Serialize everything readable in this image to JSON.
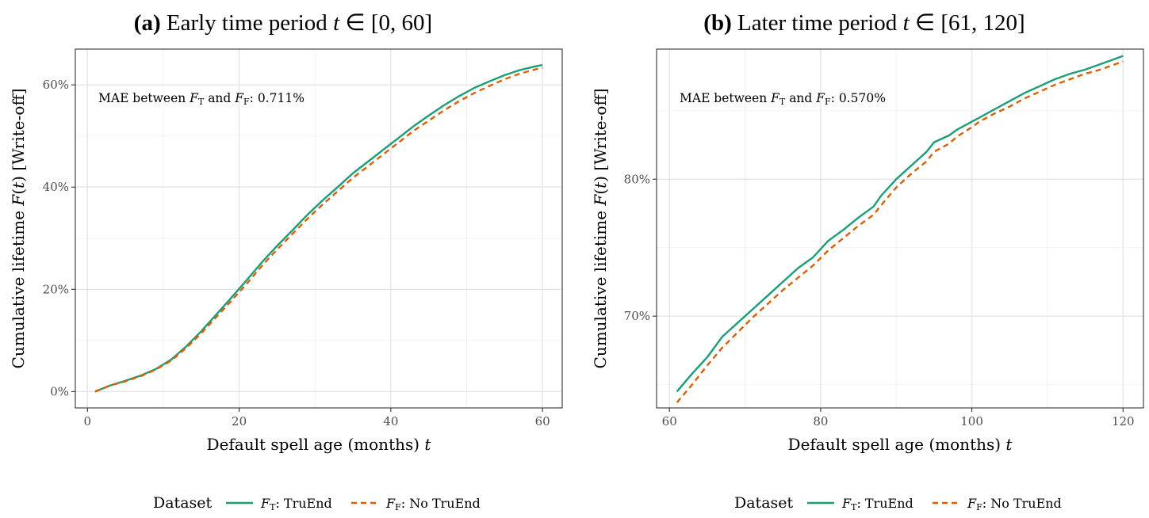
{
  "chart_data": [
    {
      "type": "line",
      "panel": "a",
      "title_label": "(a)",
      "title": "Early time period",
      "title_math_var": "t",
      "title_math_rest": " ∈ [0, 60]",
      "xlabel": "Default spell age (months)",
      "xlabel_var": "t",
      "ylabel": "Cumulative lifetime F(t) [Write-off]",
      "xlim": [
        -1.6,
        62.6
      ],
      "ylim": [
        -3.2,
        67.0
      ],
      "x_ticks": [
        0,
        20,
        40,
        60
      ],
      "x_tick_labels": [
        "0",
        "20",
        "40",
        "60"
      ],
      "y_ticks": [
        0,
        20,
        40,
        60
      ],
      "y_tick_labels": [
        "0%",
        "20%",
        "40%",
        "60%"
      ],
      "annotation": {
        "prefix": "MAE between F",
        "sub1": "T",
        "mid": " and F",
        "sub2": "F",
        "suffix": ": 0.711%"
      },
      "series": [
        {
          "name": "F_T: TruEnd",
          "color": "#1b9e77",
          "dash": "solid",
          "x": [
            1,
            3,
            5,
            7,
            9,
            11,
            13,
            15,
            17,
            19,
            21,
            23,
            25,
            27,
            29,
            31,
            33,
            35,
            37,
            39,
            41,
            43,
            45,
            47,
            49,
            51,
            53,
            55,
            57,
            59,
            60
          ],
          "values": [
            0.0,
            1.2,
            2.1,
            3.1,
            4.4,
            6.2,
            8.8,
            11.8,
            15.1,
            18.4,
            21.8,
            25.3,
            28.5,
            31.5,
            34.6,
            37.4,
            40.0,
            42.7,
            45.0,
            47.3,
            49.6,
            51.9,
            54.0,
            56.0,
            57.8,
            59.4,
            60.7,
            61.9,
            62.9,
            63.6,
            63.9
          ]
        },
        {
          "name": "F_F: No TruEnd",
          "color": "#d95f02",
          "dash": "dashed",
          "x": [
            1,
            3,
            5,
            7,
            9,
            11,
            13,
            15,
            17,
            19,
            21,
            23,
            25,
            27,
            29,
            31,
            33,
            35,
            37,
            39,
            41,
            43,
            45,
            47,
            49,
            51,
            53,
            55,
            57,
            59,
            60
          ],
          "values": [
            0.0,
            1.2,
            2.0,
            3.0,
            4.3,
            6.0,
            8.5,
            11.4,
            14.6,
            17.8,
            21.1,
            24.6,
            27.8,
            30.8,
            33.8,
            36.6,
            39.2,
            41.8,
            44.1,
            46.4,
            48.7,
            51.0,
            53.0,
            55.0,
            56.8,
            58.4,
            59.8,
            61.1,
            62.2,
            63.0,
            63.4
          ]
        }
      ]
    },
    {
      "type": "line",
      "panel": "b",
      "title_label": "(b)",
      "title": "Later time period",
      "title_math_var": "t",
      "title_math_rest": " ∈ [61, 120]",
      "xlabel": "Default spell age (months)",
      "xlabel_var": "t",
      "ylabel": "Cumulative lifetime F(t) [Write-off]",
      "xlim": [
        58.3,
        122.7
      ],
      "ylim": [
        63.3,
        89.5
      ],
      "x_ticks": [
        60,
        80,
        100,
        120
      ],
      "x_tick_labels": [
        "60",
        "80",
        "100",
        "120"
      ],
      "y_ticks": [
        70,
        80
      ],
      "y_tick_labels": [
        "70%",
        "80%"
      ],
      "annotation": {
        "prefix": "MAE between F",
        "sub1": "T",
        "mid": " and F",
        "sub2": "F",
        "suffix": ": 0.570%"
      },
      "series": [
        {
          "name": "F_T: TruEnd",
          "color": "#1b9e77",
          "dash": "solid",
          "x": [
            61,
            63,
            65,
            67,
            69,
            71,
            73,
            75,
            77,
            79,
            81,
            83,
            85,
            87,
            88,
            90,
            92,
            94,
            95,
            97,
            98,
            100,
            101,
            103,
            105,
            107,
            109,
            111,
            113,
            115,
            117,
            119,
            120
          ],
          "values": [
            64.5,
            65.8,
            67.0,
            68.5,
            69.5,
            70.5,
            71.5,
            72.5,
            73.5,
            74.3,
            75.5,
            76.3,
            77.2,
            78.0,
            78.8,
            80.0,
            81.0,
            82.0,
            82.7,
            83.2,
            83.6,
            84.2,
            84.5,
            85.1,
            85.7,
            86.3,
            86.8,
            87.3,
            87.7,
            88.0,
            88.4,
            88.8,
            89.0
          ]
        },
        {
          "name": "F_F: No TruEnd",
          "color": "#d95f02",
          "dash": "dashed",
          "x": [
            61,
            63,
            65,
            67,
            69,
            71,
            73,
            75,
            77,
            79,
            81,
            83,
            85,
            87,
            88,
            90,
            92,
            94,
            95,
            97,
            98,
            100,
            101,
            103,
            105,
            107,
            109,
            111,
            113,
            115,
            117,
            119,
            120
          ],
          "values": [
            63.7,
            65.0,
            66.4,
            67.7,
            68.8,
            69.9,
            70.9,
            71.9,
            72.8,
            73.7,
            74.8,
            75.7,
            76.6,
            77.4,
            78.1,
            79.4,
            80.4,
            81.3,
            82.0,
            82.6,
            83.1,
            83.8,
            84.2,
            84.8,
            85.3,
            85.9,
            86.4,
            86.9,
            87.3,
            87.7,
            88.0,
            88.4,
            88.6
          ]
        }
      ]
    }
  ],
  "legend": {
    "title": "Dataset",
    "items": [
      {
        "var": "F",
        "sub": "T",
        "text": ": TruEnd",
        "color": "#1b9e77",
        "dash": "solid"
      },
      {
        "var": "F",
        "sub": "F",
        "text": ": No TruEnd",
        "color": "#d95f02",
        "dash": "dashed"
      }
    ]
  }
}
